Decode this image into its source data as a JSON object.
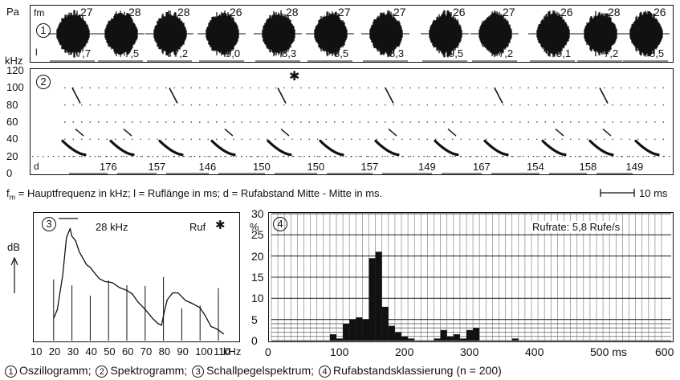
{
  "oscillogram": {
    "axis_label": "Pa",
    "fm_label": "fm",
    "l_label": "l",
    "marker": "1",
    "fm_values": [
      "27",
      "28",
      "28",
      "26",
      "28",
      "27",
      "27",
      "26",
      "27",
      "26",
      "28",
      "26"
    ],
    "l_values": [
      "7,7",
      "7,5",
      "7,2",
      "9,0",
      "8,3",
      "8,5",
      "8,3",
      "9,5",
      "7,2",
      "9,1",
      "7,2",
      "8,5"
    ]
  },
  "spectrogram": {
    "unit": "kHz",
    "marker": "2",
    "y_ticks": [
      "120",
      "100",
      "80",
      "60",
      "40",
      "20",
      "0"
    ],
    "d_label": "d",
    "d_values": [
      "176",
      "157",
      "146",
      "150",
      "150",
      "157",
      "149",
      "167",
      "154",
      "158",
      "149"
    ],
    "star": "✱"
  },
  "legend_line": {
    "fm_part": "f",
    "fm_sub": "m",
    "text": " = Hauptfrequenz in kHz;  l = Ruflänge in ms;  d = Rufabstand Mitte - Mitte in ms.",
    "scale_label": "10 ms"
  },
  "spectrum": {
    "marker": "3",
    "ylabel": "dB",
    "peak_label": "28 kHz",
    "call_label": "Ruf",
    "call_star": "✱",
    "x_ticks": [
      "10",
      "20",
      "30",
      "40",
      "50",
      "60",
      "70",
      "80",
      "90",
      "100",
      "110"
    ],
    "x_unit": "kHz"
  },
  "histogram": {
    "marker": "4",
    "y_unit": "%",
    "y_ticks": [
      "30",
      "25",
      "20",
      "15",
      "10",
      "5",
      "0"
    ],
    "x_ticks": [
      "0",
      "100",
      "200",
      "300",
      "400",
      "500 ms",
      "600"
    ],
    "rate_label": "Rufrate: 5,8   Rufe/s",
    "chart_data": {
      "type": "bar",
      "xlabel": "ms",
      "ylabel": "%",
      "ylim": [
        0,
        30
      ],
      "xlim": [
        0,
        600
      ],
      "bin_width_ms": 10,
      "bin_starts": [
        90,
        100,
        110,
        120,
        130,
        140,
        150,
        160,
        170,
        180,
        190,
        200,
        210,
        250,
        260,
        270,
        280,
        290,
        300,
        310,
        370
      ],
      "values": [
        1.5,
        0.5,
        4,
        5,
        5.5,
        5,
        19.5,
        21,
        8,
        3.5,
        2,
        1,
        0.5,
        0.5,
        2.5,
        1,
        1.5,
        0.5,
        2.5,
        3,
        0.5
      ]
    }
  },
  "caption": [
    {
      "num": "1",
      "text": "Oszillogramm;"
    },
    {
      "num": "2",
      "text": "Spektrogramm;"
    },
    {
      "num": "3",
      "text": "Schallpegelspektrum;"
    },
    {
      "num": "4",
      "text": "Rufabstandsklassierung  (n = 200)"
    }
  ]
}
